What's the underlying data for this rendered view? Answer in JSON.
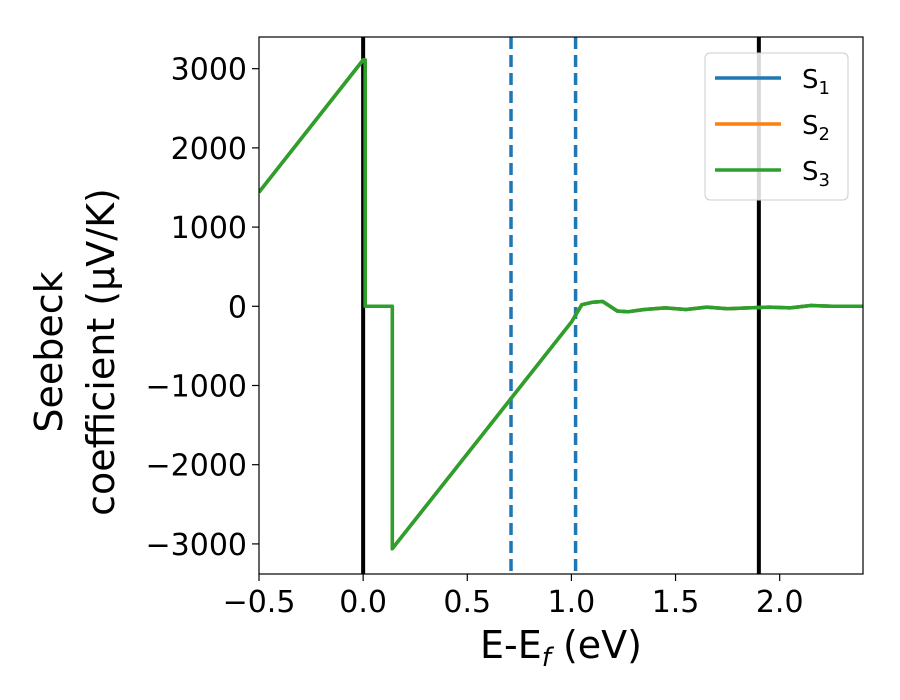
{
  "chart_data": {
    "type": "line",
    "xlabel": {
      "main": "E-E",
      "sub": "f",
      "unit": " (eV)"
    },
    "ylabel": {
      "line1": "Seebeck",
      "line2": "coefficient  (μV/K)"
    },
    "xlim": [
      -0.5,
      2.4
    ],
    "ylim": [
      -3380,
      3400
    ],
    "xticks": [
      -0.5,
      0.0,
      0.5,
      1.0,
      1.5,
      2.0
    ],
    "xtick_labels": [
      "−0.5",
      "0.0",
      "0.5",
      "1.0",
      "1.5",
      "2.0"
    ],
    "yticks": [
      3000,
      2000,
      1000,
      0,
      -1000,
      -2000,
      -3000
    ],
    "ytick_labels": [
      "3000",
      "2000",
      "1000",
      "0",
      "−1000",
      "−2000",
      "−3000"
    ],
    "grid": false,
    "legend_position": "top-right",
    "series": [
      {
        "name": "S",
        "sub": "1",
        "color": "#1f77b4",
        "shares_data_with": "S3"
      },
      {
        "name": "S",
        "sub": "2",
        "color": "#ff7f0e",
        "shares_data_with": "S3"
      },
      {
        "name": "S",
        "sub": "3",
        "color": "#2ca02c",
        "x": [
          -0.5,
          0.0,
          0.01,
          0.01,
          0.14,
          0.14,
          1.0,
          1.05,
          1.1,
          1.15,
          1.18,
          1.22,
          1.27,
          1.35,
          1.45,
          1.55,
          1.65,
          1.75,
          1.85,
          1.95,
          2.05,
          2.15,
          2.25,
          2.4
        ],
        "y": [
          1440,
          3110,
          3110,
          0,
          0,
          -3060,
          -200,
          20,
          50,
          60,
          10,
          -60,
          -70,
          -40,
          -20,
          -40,
          -10,
          -30,
          -20,
          -10,
          -20,
          10,
          0,
          0
        ]
      }
    ],
    "vlines": [
      {
        "x": 0.0,
        "style": "solid",
        "color": "#000000"
      },
      {
        "x": 1.9,
        "style": "solid",
        "color": "#000000"
      },
      {
        "x": 0.71,
        "style": "dashed",
        "color": "#1f77b4"
      },
      {
        "x": 1.02,
        "style": "dashed",
        "color": "#1f77b4"
      }
    ]
  }
}
